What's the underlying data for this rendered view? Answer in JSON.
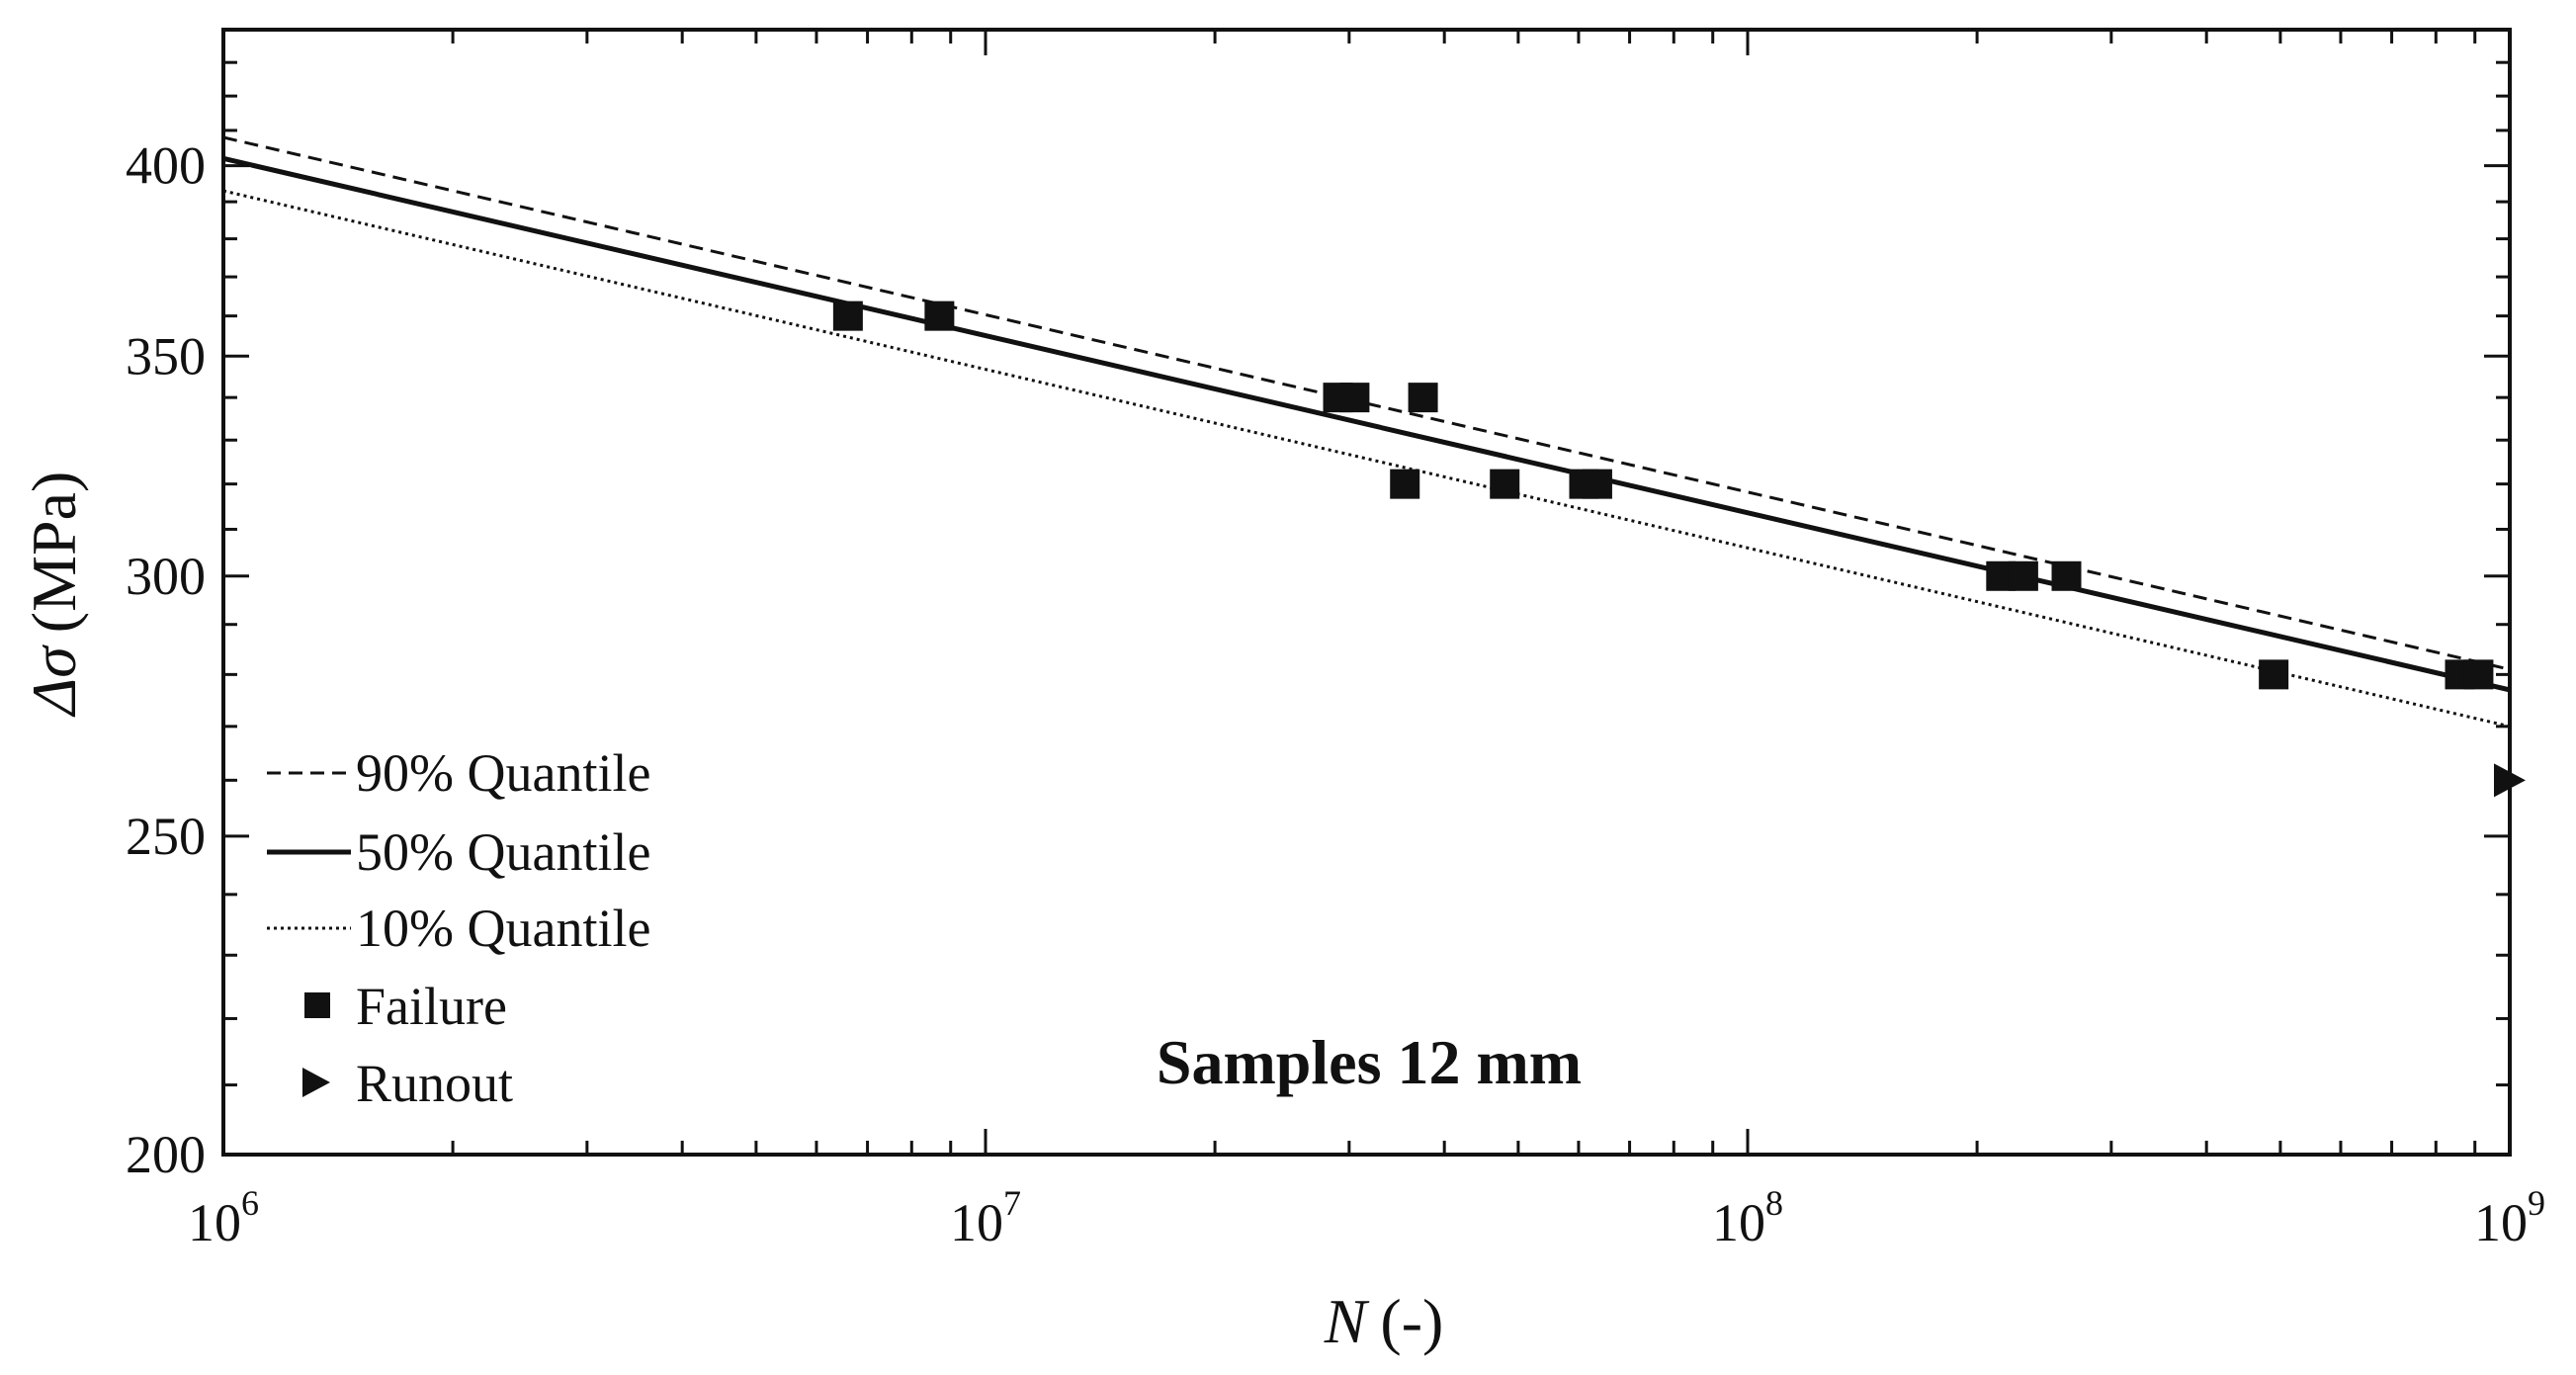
{
  "chart_data": {
    "type": "scatter",
    "title": "",
    "xlabel": "N (-)",
    "xlabel_var": "N",
    "xlabel_unit": "(-)",
    "ylabel": "Δσ (MPa)",
    "ylabel_var": "Δσ",
    "ylabel_unit": "(MPa)",
    "xscale": "log",
    "yscale": "log",
    "xlim": [
      1000000,
      1000000000
    ],
    "ylim": [
      200,
      440
    ],
    "x_ticks": [
      {
        "value": 1000000,
        "base": "10",
        "exp": "6"
      },
      {
        "value": 10000000,
        "base": "10",
        "exp": "7"
      },
      {
        "value": 100000000,
        "base": "10",
        "exp": "8"
      },
      {
        "value": 1000000000,
        "base": "10",
        "exp": "9"
      }
    ],
    "y_ticks": [
      {
        "value": 200,
        "label": "200"
      },
      {
        "value": 250,
        "label": "250"
      },
      {
        "value": 300,
        "label": "300"
      },
      {
        "value": 350,
        "label": "350"
      },
      {
        "value": 400,
        "label": "400"
      }
    ],
    "lines": [
      {
        "name": "90% Quantile",
        "label": "90% Quantile",
        "style": "dashed",
        "x": [
          1000000,
          1000000000
        ],
        "y": [
          408,
          281
        ]
      },
      {
        "name": "50% Quantile",
        "label": "50% Quantile",
        "style": "solid",
        "x": [
          1000000,
          1000000000
        ],
        "y": [
          402,
          277
        ]
      },
      {
        "name": "10% Quantile",
        "label": "10% Quantile",
        "style": "dotted",
        "x": [
          1000000,
          1000000000
        ],
        "y": [
          393,
          270
        ]
      }
    ],
    "series": [
      {
        "name": "Failure",
        "label": "Failure",
        "marker": "square",
        "x": [
          6600000,
          8700000,
          29000000,
          30500000,
          37500000,
          35500000,
          48000000,
          61000000,
          63500000,
          215000000,
          230000000,
          262000000,
          490000000,
          860000000,
          910000000
        ],
        "y": [
          360,
          360,
          340,
          340,
          340,
          320,
          320,
          320,
          320,
          300,
          300,
          300,
          280,
          280,
          280
        ]
      },
      {
        "name": "Runout",
        "label": "Runout",
        "marker": "triangle-right",
        "x": [
          1000000000
        ],
        "y": [
          260
        ]
      }
    ],
    "annotation": "Samples 12 mm",
    "legend_position": "lower-left",
    "grid": false,
    "colors": {
      "ink": "#111111",
      "background": "#ffffff"
    }
  }
}
